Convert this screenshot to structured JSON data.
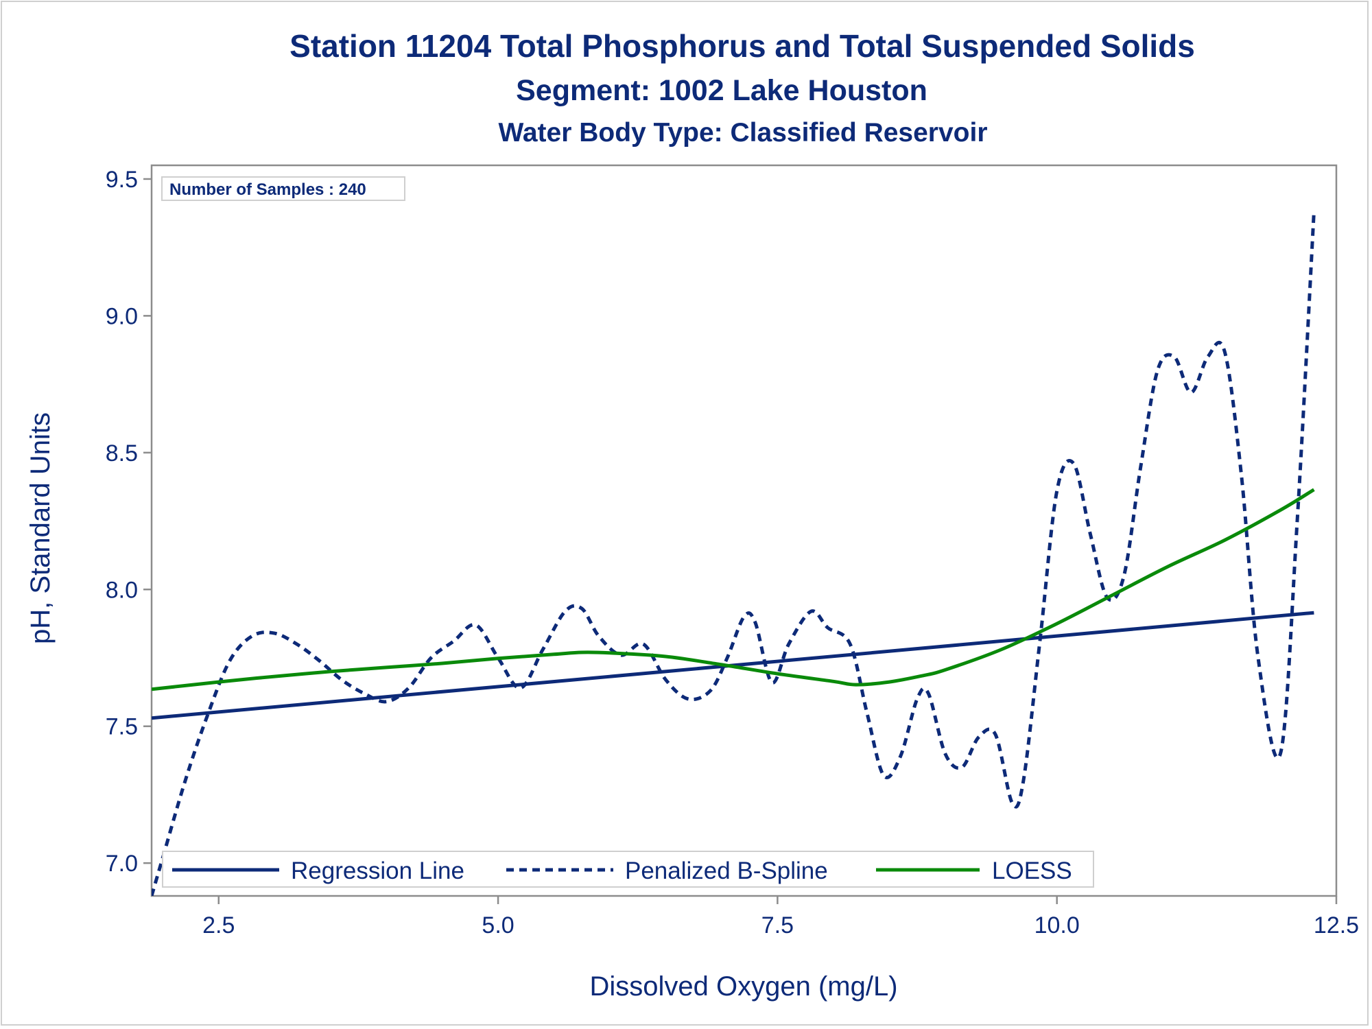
{
  "titles": {
    "line1": "Station 11204  Total Phosphorus and Total Suspended Solids",
    "line2": "Segment: 1002  Lake Houston",
    "line3": "Water Body Type: Classified Reservoir"
  },
  "inset_label": "Number of Samples : 240",
  "chart_data": {
    "type": "line",
    "xlabel": "Dissolved Oxygen (mg/L)",
    "ylabel": "pH, Standard Units",
    "xlim": [
      1.9,
      12.5
    ],
    "ylim": [
      6.88,
      9.55
    ],
    "xticks": [
      2.5,
      5.0,
      7.5,
      10.0,
      12.5
    ],
    "xtick_labels": [
      "2.5",
      "5.0",
      "7.5",
      "10.0",
      "12.5"
    ],
    "yticks": [
      7.0,
      7.5,
      8.0,
      8.5,
      9.0,
      9.5
    ],
    "ytick_labels": [
      "7.0",
      "7.5",
      "8.0",
      "8.5",
      "9.0",
      "9.5"
    ],
    "grid": false,
    "legend_position": "bottom-left inside",
    "colors": {
      "navy": "#0d2a78",
      "green": "#0a8a0a",
      "frame": "#8c8c8c"
    },
    "series": [
      {
        "name": "Regression Line",
        "style": "solid",
        "color": "#0d2a78",
        "x": [
          1.9,
          12.3
        ],
        "y": [
          7.53,
          7.915
        ]
      },
      {
        "name": "Penalized B-Spline",
        "style": "dashed",
        "color": "#0d2a78",
        "x": [
          1.9,
          2.0,
          2.2,
          2.4,
          2.6,
          2.8,
          3.0,
          3.2,
          3.4,
          3.6,
          3.8,
          4.0,
          4.2,
          4.4,
          4.6,
          4.8,
          5.0,
          5.2,
          5.4,
          5.6,
          5.75,
          5.9,
          6.1,
          6.3,
          6.5,
          6.7,
          6.9,
          7.05,
          7.2,
          7.3,
          7.45,
          7.6,
          7.8,
          7.95,
          8.15,
          8.3,
          8.45,
          8.6,
          8.75,
          8.85,
          9.0,
          9.15,
          9.3,
          9.45,
          9.6,
          9.7,
          9.85,
          10.0,
          10.15,
          10.3,
          10.45,
          10.6,
          10.75,
          10.9,
          11.05,
          11.2,
          11.35,
          11.5,
          11.65,
          11.8,
          12.0,
          12.15,
          12.3
        ],
        "y": [
          6.88,
          7.02,
          7.3,
          7.54,
          7.74,
          7.83,
          7.84,
          7.8,
          7.74,
          7.67,
          7.62,
          7.59,
          7.64,
          7.75,
          7.81,
          7.87,
          7.75,
          7.64,
          7.78,
          7.92,
          7.93,
          7.83,
          7.76,
          7.8,
          7.67,
          7.6,
          7.63,
          7.75,
          7.9,
          7.88,
          7.66,
          7.8,
          7.92,
          7.86,
          7.8,
          7.55,
          7.32,
          7.39,
          7.6,
          7.62,
          7.4,
          7.35,
          7.46,
          7.47,
          7.22,
          7.3,
          7.82,
          8.36,
          8.46,
          8.2,
          7.97,
          8.05,
          8.45,
          8.8,
          8.85,
          8.72,
          8.85,
          8.87,
          8.42,
          7.75,
          7.4,
          8.25,
          9.38
        ]
      },
      {
        "name": "LOESS",
        "style": "solid",
        "color": "#0a8a0a",
        "x": [
          1.9,
          2.5,
          3.0,
          3.5,
          4.0,
          4.5,
          5.0,
          5.5,
          5.75,
          6.0,
          6.5,
          7.0,
          7.5,
          8.0,
          8.2,
          8.5,
          8.8,
          9.0,
          9.5,
          10.0,
          10.5,
          11.0,
          11.5,
          12.0,
          12.3
        ],
        "y": [
          7.635,
          7.662,
          7.682,
          7.7,
          7.715,
          7.73,
          7.748,
          7.763,
          7.77,
          7.768,
          7.755,
          7.725,
          7.692,
          7.664,
          7.652,
          7.662,
          7.685,
          7.706,
          7.78,
          7.875,
          7.98,
          8.085,
          8.18,
          8.29,
          8.365
        ]
      }
    ]
  }
}
